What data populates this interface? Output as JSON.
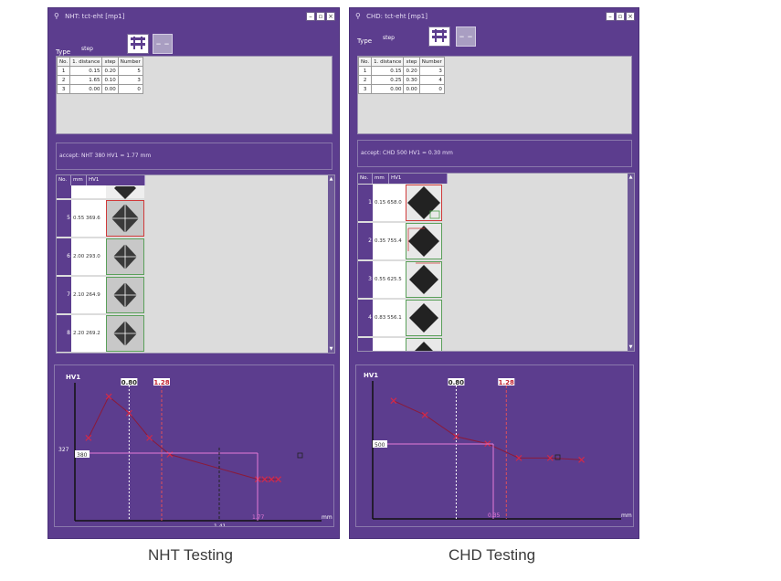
{
  "nht": {
    "title": "NHT: tct-eht [mp1]",
    "type_label": "Type",
    "type_value": "step",
    "table": {
      "headers": [
        "No.",
        "1. distance",
        "step",
        "Number"
      ],
      "rows": [
        [
          "1",
          "0.15",
          "0.20",
          "5"
        ],
        [
          "2",
          "1.65",
          "0.10",
          "3"
        ],
        [
          "3",
          "0.00",
          "0.00",
          "0"
        ]
      ]
    },
    "accept": "accept: NHT 380 HV1 = 1.77 mm",
    "indent_headers": [
      "No.",
      "mm",
      "HV1"
    ],
    "indent_rows": [
      {
        "no": "",
        "value": ""
      },
      {
        "no": "5",
        "value": "0.55  369.6"
      },
      {
        "no": "6",
        "value": "2.00  293.0"
      },
      {
        "no": "7",
        "value": "2.10  264.9"
      },
      {
        "no": "8",
        "value": "2.20  269.2"
      }
    ],
    "caption": "NHT Testing"
  },
  "chd": {
    "title": "CHD: tct-eht [mp1]",
    "type_label": "Type",
    "type_value": "step",
    "table": {
      "headers": [
        "No.",
        "1. distance",
        "step",
        "Number"
      ],
      "rows": [
        [
          "1",
          "0.15",
          "0.20",
          "3"
        ],
        [
          "2",
          "0.25",
          "0.30",
          "4"
        ],
        [
          "3",
          "0.00",
          "0.00",
          "0"
        ]
      ]
    },
    "accept": "accept: CHD 500 HV1 = 0.30 mm",
    "indent_headers": [
      "No.",
      "mm",
      "HV1"
    ],
    "indent_rows": [
      {
        "no": "1",
        "value": "0.15  658.0"
      },
      {
        "no": "2",
        "value": "0.35  755.4"
      },
      {
        "no": "3",
        "value": "0.55  625.5"
      },
      {
        "no": "4",
        "value": "0.83  556.1"
      },
      {
        "no": "",
        "value": ""
      }
    ],
    "caption": "CHD Testing"
  },
  "chart_data": [
    {
      "type": "line",
      "ylabel": "HV1",
      "xlabel": "mm",
      "x": [
        0.2,
        0.5,
        0.8,
        1.1,
        1.4,
        2.7,
        2.8,
        2.9,
        3.0
      ],
      "y": [
        400,
        500,
        460,
        400,
        360,
        300,
        300,
        300,
        300
      ],
      "threshold_labels": {
        "y": "327",
        "y_box": "380",
        "x": "1.77",
        "x2": "1.41"
      },
      "vlines": {
        "white": "0.80",
        "red": "1.28"
      },
      "colors": {
        "series": "#8b1a3a",
        "marker": "#d22a4a",
        "limit": "#e67ad8",
        "red_line": "#e0505a"
      }
    },
    {
      "type": "line",
      "ylabel": "HV1",
      "xlabel": "mm",
      "x": [
        0.2,
        0.5,
        0.8,
        1.1,
        1.4,
        1.7,
        2.0
      ],
      "y": [
        680,
        640,
        580,
        560,
        520,
        520,
        515
      ],
      "threshold_labels": {
        "y_box": "500",
        "x": "0.35"
      },
      "vlines": {
        "white": "0.80",
        "red": "1.28"
      },
      "colors": {
        "series": "#8b1a3a",
        "marker": "#d22a4a",
        "limit": "#e67ad8",
        "red_line": "#e0505a"
      }
    }
  ]
}
